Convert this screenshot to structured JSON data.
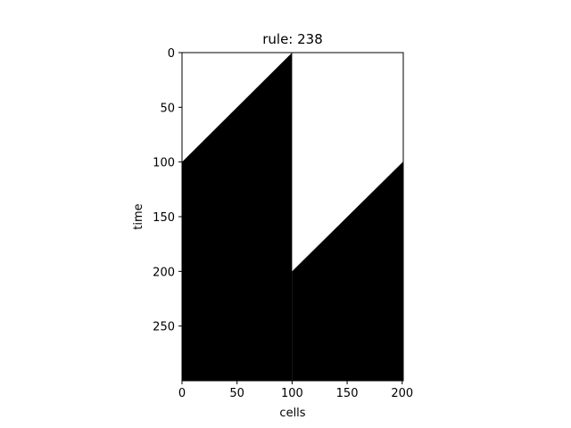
{
  "chart_data": {
    "type": "heatmap",
    "title": "rule: 238",
    "xlabel": "cells",
    "ylabel": "time",
    "xlim": [
      0,
      201
    ],
    "ylim": [
      300,
      0
    ],
    "xticks": [
      0,
      50,
      100,
      150,
      200
    ],
    "yticks": [
      0,
      50,
      100,
      150,
      200,
      250
    ],
    "grid": false,
    "colormap": {
      "0": "#ffffff",
      "1": "#000000"
    },
    "regions": [
      {
        "name": "left-growth",
        "value": 1,
        "polygon": [
          [
            0,
            100
          ],
          [
            100,
            0
          ],
          [
            100,
            300
          ],
          [
            0,
            300
          ]
        ]
      },
      {
        "name": "right-growth",
        "value": 1,
        "polygon": [
          [
            100,
            200
          ],
          [
            201,
            99.5
          ],
          [
            201,
            300
          ],
          [
            100,
            300
          ]
        ]
      }
    ]
  }
}
